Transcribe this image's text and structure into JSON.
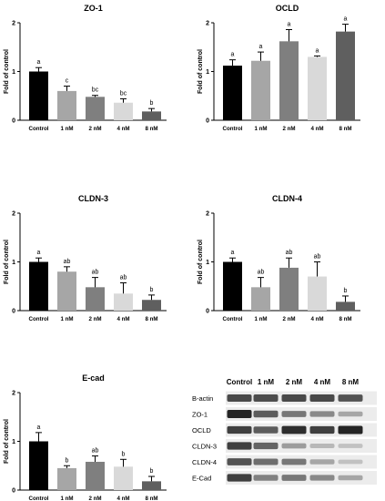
{
  "chart_data": [
    {
      "type": "bar",
      "title": "ZO-1",
      "ylabel": "Fold of control",
      "categories": [
        "Control",
        "1 nM",
        "2 nM",
        "4 nM",
        "8 nM"
      ],
      "values": [
        1.0,
        0.6,
        0.48,
        0.36,
        0.18
      ],
      "errors": [
        0.08,
        0.1,
        0.03,
        0.08,
        0.06
      ],
      "letters": [
        "a",
        "c",
        "bc",
        "bc",
        "b"
      ],
      "ylim": [
        0,
        2
      ],
      "yticks": [
        "0",
        "1",
        "2"
      ],
      "colors": [
        "#000000",
        "#a6a6a6",
        "#7f7f7f",
        "#d9d9d9",
        "#5f5f5f"
      ]
    },
    {
      "type": "bar",
      "title": "OCLD",
      "ylabel": "Fold of control",
      "categories": [
        "Control",
        "1 nM",
        "2 nM",
        "4 nM",
        "8 nM"
      ],
      "values": [
        1.12,
        1.22,
        1.62,
        1.3,
        1.82
      ],
      "errors": [
        0.12,
        0.18,
        0.24,
        0.02,
        0.15
      ],
      "letters": [
        "a",
        "a",
        "a",
        "a",
        "a"
      ],
      "ylim": [
        0,
        2
      ],
      "yticks": [
        "0",
        "1",
        "2"
      ],
      "colors": [
        "#000000",
        "#a6a6a6",
        "#7f7f7f",
        "#d9d9d9",
        "#5f5f5f"
      ]
    },
    {
      "type": "bar",
      "title": "CLDN-3",
      "ylabel": "Fold of control",
      "categories": [
        "Control",
        "1 nM",
        "2 nM",
        "4 nM",
        "8 nM"
      ],
      "values": [
        1.0,
        0.8,
        0.48,
        0.35,
        0.22
      ],
      "errors": [
        0.08,
        0.1,
        0.2,
        0.22,
        0.1
      ],
      "letters": [
        "a",
        "ab",
        "ab",
        "ab",
        "b"
      ],
      "ylim": [
        0,
        2
      ],
      "yticks": [
        "0",
        "1",
        "2"
      ],
      "colors": [
        "#000000",
        "#a6a6a6",
        "#7f7f7f",
        "#d9d9d9",
        "#5f5f5f"
      ]
    },
    {
      "type": "bar",
      "title": "CLDN-4",
      "ylabel": "Fold of control",
      "categories": [
        "Control",
        "1 nM",
        "2 nM",
        "4 nM",
        "8 nM"
      ],
      "values": [
        1.0,
        0.48,
        0.88,
        0.7,
        0.18
      ],
      "errors": [
        0.08,
        0.2,
        0.2,
        0.3,
        0.12
      ],
      "letters": [
        "a",
        "ab",
        "ab",
        "ab",
        "b"
      ],
      "ylim": [
        0,
        2
      ],
      "yticks": [
        "0",
        "1",
        "2"
      ],
      "colors": [
        "#000000",
        "#a6a6a6",
        "#7f7f7f",
        "#d9d9d9",
        "#5f5f5f"
      ]
    },
    {
      "type": "bar",
      "title": "E-cad",
      "ylabel": "Fold of control",
      "categories": [
        "Control",
        "1 nM",
        "2 nM",
        "4 nM",
        "8 nM"
      ],
      "values": [
        1.0,
        0.45,
        0.58,
        0.48,
        0.18
      ],
      "errors": [
        0.18,
        0.05,
        0.12,
        0.15,
        0.1
      ],
      "letters": [
        "a",
        "b",
        "ab",
        "b",
        "b"
      ],
      "ylim": [
        0,
        2
      ],
      "yticks": [
        "0",
        "1",
        "2"
      ],
      "colors": [
        "#000000",
        "#a6a6a6",
        "#7f7f7f",
        "#d9d9d9",
        "#5f5f5f"
      ]
    }
  ],
  "blot": {
    "columns": [
      "Control",
      "1 nM",
      "2 nM",
      "4 nM",
      "8 nM"
    ],
    "rows": [
      {
        "label": "B-actin",
        "intensity": [
          0.8,
          0.78,
          0.8,
          0.8,
          0.75
        ]
      },
      {
        "label": "ZO-1",
        "intensity": [
          1.0,
          0.7,
          0.55,
          0.45,
          0.3
        ]
      },
      {
        "label": "OCLD",
        "intensity": [
          0.85,
          0.7,
          0.95,
          0.85,
          1.0
        ]
      },
      {
        "label": "CLDN-3",
        "intensity": [
          0.85,
          0.65,
          0.35,
          0.2,
          0.15
        ]
      },
      {
        "label": "CLDN-4",
        "intensity": [
          0.75,
          0.6,
          0.55,
          0.3,
          0.15
        ]
      },
      {
        "label": "E-Cad",
        "intensity": [
          0.85,
          0.5,
          0.55,
          0.45,
          0.3
        ]
      }
    ]
  }
}
